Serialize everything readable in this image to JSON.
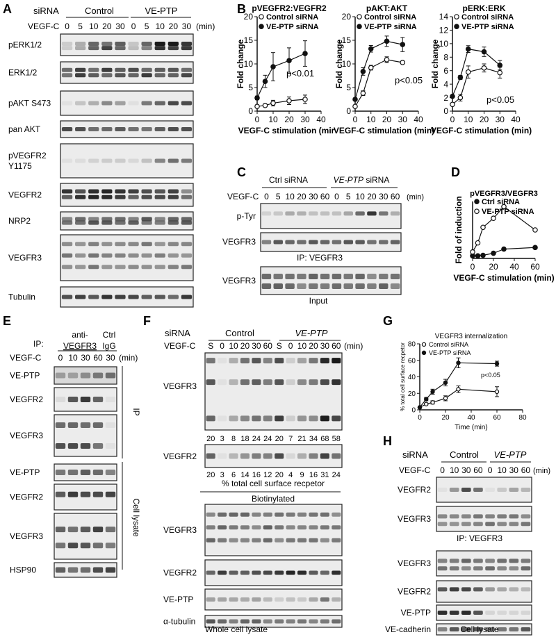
{
  "panel_letters": [
    "A",
    "B",
    "C",
    "D",
    "E",
    "F",
    "G",
    "H"
  ],
  "panelA": {
    "header_sirna": "siRNA",
    "group_control": "Control",
    "group_treat": "VE-PTP",
    "vegfc_label": "VEGF-C",
    "times": [
      "0",
      "5",
      "10",
      "20",
      "30",
      "0",
      "5",
      "10",
      "20",
      "30"
    ],
    "unit": "(min)",
    "blots": [
      "pERK1/2",
      "ERK1/2",
      "pAKT S473",
      "pan AKT",
      "pVEGFR2\nY1175",
      "VEGFR2",
      "NRP2",
      "VEGFR3",
      "Tubulin"
    ]
  },
  "panelC": {
    "group_ctrl": "Ctrl siRNA",
    "group_treat": "VE-PTP",
    "group_treat_suffix": " siRNA",
    "vegfc_label": "VEGF-C",
    "times": [
      "0",
      "5",
      "10",
      "20",
      "30",
      "60",
      "0",
      "5",
      "10",
      "20",
      "30",
      "60"
    ],
    "unit": "(min)",
    "blots": [
      "p-Tyr",
      "VEGFR3"
    ],
    "ip_label": "IP: VEGFR3",
    "input_blot": "VEGFR3",
    "input_label": "Input"
  },
  "panelE": {
    "ip_word": "IP:",
    "anti_label": "anti-",
    "vegfr3_label": "VEGFR3",
    "ctrl_label": "Ctrl",
    "igg_label": "IgG",
    "vegfc_label": "VEGF-C",
    "times": [
      "0",
      "10",
      "30",
      "60",
      "30"
    ],
    "unit": "(min)",
    "ip_blots": [
      "VE-PTP",
      "VEGFR2",
      "VEGFR3"
    ],
    "lysate_blots": [
      "VE-PTP",
      "VEGFR2",
      "VEGFR3",
      "HSP90"
    ],
    "side_ip": "IP",
    "side_lysate": "Cell lysate"
  },
  "panelF": {
    "header_sirna": "siRNA",
    "group_control": "Control",
    "group_treat": "VE-PTP",
    "vegfc_label": "VEGF-C",
    "times": [
      "S",
      "0",
      "10",
      "20",
      "30",
      "60",
      "S",
      "0",
      "10",
      "20",
      "30",
      "60"
    ],
    "unit": "(min)",
    "surface_blots": [
      "VEGFR3",
      "VEGFR2"
    ],
    "vegfr3_numbers": [
      "20",
      "3",
      "8",
      "18",
      "24",
      "24",
      "20",
      "7",
      "21",
      "34",
      "68",
      "58"
    ],
    "vegfr2_numbers": [
      "20",
      "3",
      "6",
      "14",
      "16",
      "12",
      "20",
      "4",
      "9",
      "16",
      "31",
      "24"
    ],
    "pct_label": "% total cell surface recpetor",
    "biotin_label": "Biotinylated",
    "lysate_blots": [
      "VEGFR3",
      "VEGFR2",
      "VE-PTP",
      "α-tubulin"
    ],
    "lysate_label": "Whole cell lysate"
  },
  "panelH": {
    "header_sirna": "siRNA",
    "group_control": "Control",
    "group_treat": "VE-PTP",
    "vegfc_label": "VEGF-C",
    "times": [
      "0",
      "10",
      "30",
      "60",
      "0",
      "10",
      "30",
      "60"
    ],
    "unit": "(min)",
    "ip_blots": [
      "VEGFR2",
      "VEGFR3"
    ],
    "ip_label": "IP: VEGFR3",
    "lysate_blots": [
      "VEGFR3",
      "VEGFR2",
      "VE-PTP",
      "VE-cadherin"
    ],
    "lysate_label": "Cell lysate"
  },
  "chart_data": [
    {
      "type": "line",
      "panel": "B",
      "title": "pVEGFR2:VEGFR2",
      "xlabel": "VEGF-C stimulation (mir",
      "ylabel": "Fold change",
      "xlim": [
        0,
        40
      ],
      "ylim": [
        0,
        20
      ],
      "xticks": [
        0,
        10,
        20,
        30,
        40
      ],
      "yticks": [
        0,
        5,
        10,
        15,
        20
      ],
      "annotation": "p<0.01",
      "legend": "top-left",
      "series": [
        {
          "name": "Control siRNA",
          "marker": "open",
          "x": [
            0,
            5,
            10,
            20,
            30
          ],
          "y": [
            1,
            1.2,
            1.7,
            2.2,
            2.5
          ],
          "err": [
            0.3,
            0.3,
            0.6,
            0.8,
            0.9
          ]
        },
        {
          "name": "VE-PTP siRNA",
          "marker": "filled",
          "x": [
            0,
            5,
            10,
            20,
            30
          ],
          "y": [
            2.8,
            6.3,
            9.4,
            10.7,
            12.2
          ],
          "err": [
            0.4,
            1.3,
            3,
            2.7,
            2.7
          ]
        }
      ]
    },
    {
      "type": "line",
      "panel": "B",
      "title": "pAKT:AKT",
      "xlabel": "VEGF-C stimulation (min)",
      "ylabel": "Fold change",
      "xlim": [
        0,
        40
      ],
      "ylim": [
        0,
        20
      ],
      "xticks": [
        0,
        10,
        20,
        30,
        40
      ],
      "yticks": [
        0,
        5,
        10,
        15,
        20
      ],
      "annotation": "p<0.05",
      "legend": "top-left",
      "series": [
        {
          "name": "Control siRNA",
          "marker": "open",
          "x": [
            0,
            5,
            10,
            20,
            30
          ],
          "y": [
            1,
            3.8,
            9.2,
            10.9,
            10.3
          ],
          "err": [
            0.2,
            0.5,
            0.5,
            0.6,
            0.3
          ]
        },
        {
          "name": "VE-PTP siRNA",
          "marker": "filled",
          "x": [
            0,
            5,
            10,
            20,
            30
          ],
          "y": [
            2.5,
            8.4,
            13.2,
            14.8,
            14.1
          ],
          "err": [
            0.3,
            0.8,
            0.7,
            1.1,
            1.5
          ]
        }
      ]
    },
    {
      "type": "line",
      "panel": "B",
      "title": "pERK:ERK",
      "xlabel": "VEGF-C stimulation (min)",
      "ylabel": "Fold change",
      "xlim": [
        0,
        40
      ],
      "ylim": [
        0,
        14
      ],
      "xticks": [
        0,
        10,
        20,
        30,
        40
      ],
      "yticks": [
        0,
        2,
        4,
        6,
        8,
        10,
        12,
        14
      ],
      "annotation": "p<0.05",
      "legend": "top-left",
      "series": [
        {
          "name": "Control siRNA",
          "marker": "open",
          "x": [
            0,
            5,
            10,
            20,
            30
          ],
          "y": [
            1,
            2,
            5.8,
            6.4,
            5.7
          ],
          "err": [
            0.2,
            0.5,
            0.9,
            0.6,
            0.8
          ]
        },
        {
          "name": "VE-PTP siRNA",
          "marker": "filled",
          "x": [
            0,
            5,
            10,
            20,
            30
          ],
          "y": [
            2.2,
            5,
            9.2,
            8.8,
            6.8
          ],
          "err": [
            0.2,
            0.3,
            0.5,
            0.7,
            0.7
          ]
        }
      ]
    },
    {
      "type": "line",
      "panel": "D",
      "title": "pVEGFR3/VEGFR3",
      "xlabel": "VEGF-C stimulation (min)",
      "ylabel": "Fold of induction",
      "xlim": [
        0,
        60
      ],
      "ylim": [
        0,
        22
      ],
      "xticks": [
        0,
        20,
        40,
        60
      ],
      "yticks": [],
      "legend": "top-left",
      "series": [
        {
          "name": "Ctrl siRNA",
          "marker": "filled",
          "x": [
            0,
            5,
            10,
            20,
            30,
            60
          ],
          "y": [
            1,
            1,
            1.2,
            2,
            3.6,
            4.2
          ]
        },
        {
          "name": "VE-PTP siRNA",
          "marker": "open",
          "x": [
            0,
            5,
            10,
            20,
            30,
            60
          ],
          "y": [
            2.5,
            6,
            12,
            15.5,
            20,
            11
          ]
        }
      ]
    },
    {
      "type": "line",
      "panel": "G",
      "title": "VEGFR3 internalization",
      "xlabel": "Time (min)",
      "ylabel": "% total cell surface recpetor",
      "xlim": [
        0,
        80
      ],
      "ylim": [
        0,
        80
      ],
      "xticks": [
        0,
        20,
        40,
        60,
        80
      ],
      "yticks": [
        0,
        20,
        40,
        60,
        80
      ],
      "annotation": "p<0.05",
      "legend": "top-left",
      "series": [
        {
          "name": "Control siRNA",
          "marker": "open",
          "x": [
            0,
            5,
            10,
            20,
            30,
            60
          ],
          "y": [
            3,
            7,
            9,
            14,
            25,
            22
          ],
          "err": [
            1,
            1,
            2,
            3,
            4,
            6
          ]
        },
        {
          "name": "VE-PTP siRNA",
          "marker": "filled",
          "x": [
            0,
            5,
            10,
            20,
            30,
            60
          ],
          "y": [
            3,
            13,
            22,
            33,
            57,
            56
          ],
          "err": [
            1,
            2,
            3,
            4,
            6,
            3
          ]
        }
      ]
    }
  ]
}
